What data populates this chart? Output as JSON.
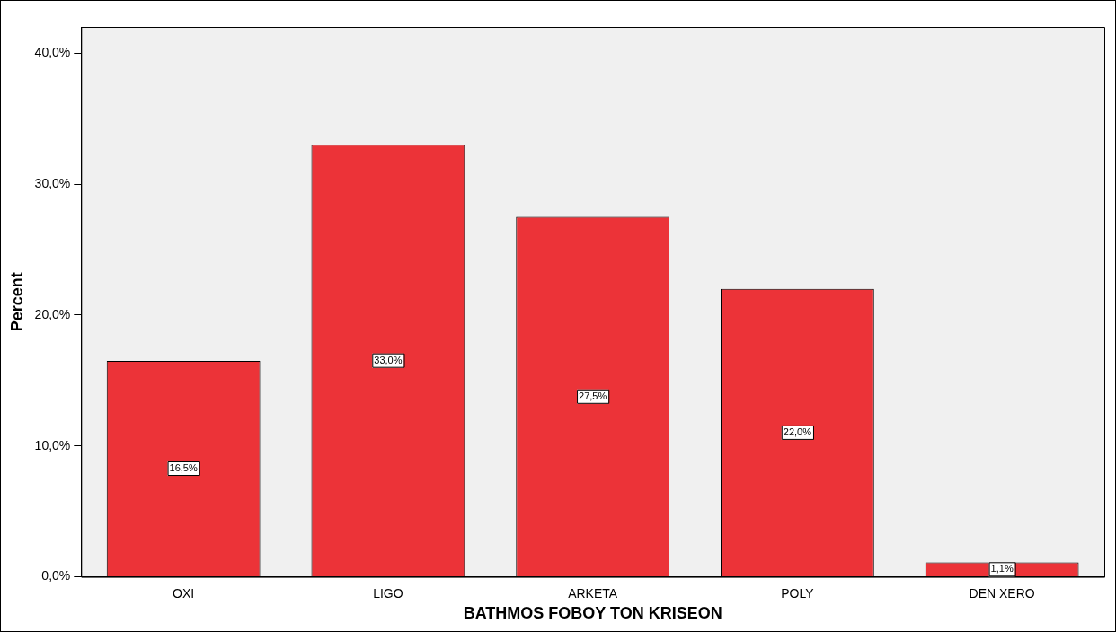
{
  "chart_data": {
    "type": "bar",
    "xlabel": "BATHMOS FOBOY TON KRISEON",
    "ylabel": "Percent",
    "categories": [
      "OXI",
      "LIGO",
      "ARKETA",
      "POLY",
      "DEN XERO"
    ],
    "values": [
      16.5,
      33.0,
      27.5,
      22.0,
      1.1
    ],
    "value_labels": [
      "16,5%",
      "33,0%",
      "27,5%",
      "22,0%",
      "1,1%"
    ],
    "color": "#ec3338",
    "ylim": [
      0,
      42
    ],
    "yticks": [
      {
        "value": 0,
        "label": "0,0%"
      },
      {
        "value": 10,
        "label": "10,0%"
      },
      {
        "value": 20,
        "label": "20,0%"
      },
      {
        "value": 30,
        "label": "30,0%"
      },
      {
        "value": 40,
        "label": "40,0%"
      }
    ],
    "grid": false,
    "legend": false
  }
}
